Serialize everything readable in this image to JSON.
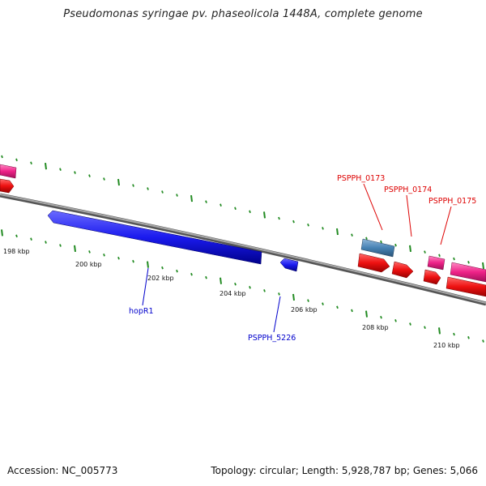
{
  "title": "Pseudomonas syringae pv. phaseolicola 1448A, complete genome",
  "footer": {
    "accession": "Accession: NC_005773",
    "summary": "Topology: circular; Length: 5,928,787 bp; Genes: 5,066"
  },
  "colors": {
    "backbone": "#808080",
    "tick": "#228B22",
    "blue_gene": "#1a1aee",
    "steelblue_gene": "#4682b4",
    "red_gene": "#ee1111",
    "pink_gene": "#ee2288",
    "label_red": "#dd0000",
    "label_blue": "#0000cc"
  },
  "kbp_labels": [
    "198 kbp",
    "200 kbp",
    "202 kbp",
    "204 kbp",
    "206 kbp",
    "208 kbp",
    "210 kbp"
  ],
  "gene_labels": {
    "hopR1": "hopR1",
    "PSPPH_5226": "PSPPH_5226",
    "PSPPH_0173": "PSPPH_0173",
    "PSPPH_0174": "PSPPH_0174",
    "PSPPH_0175": "PSPPH_0175"
  }
}
